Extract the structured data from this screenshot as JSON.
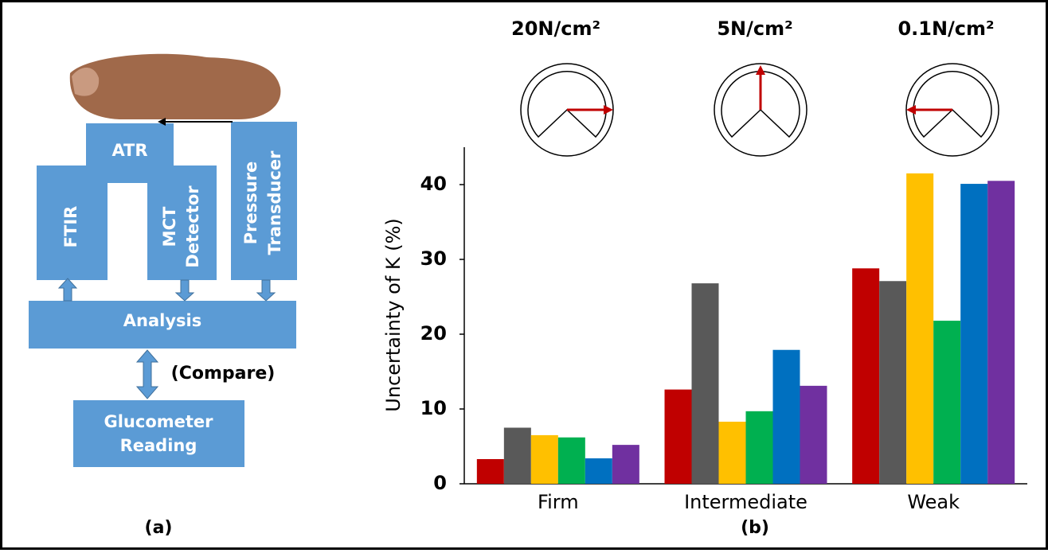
{
  "panels": {
    "a": "(a)",
    "b": "(b)"
  },
  "diagram": {
    "atr": "ATR",
    "ftir": "FTIR",
    "mct": [
      "MCT",
      "Detector"
    ],
    "pressure": [
      "Pressure",
      "Transducer"
    ],
    "analysis": "Analysis",
    "compare": "(Compare)",
    "glucometer": [
      "Glucometer",
      "Reading"
    ]
  },
  "gauges": [
    "20N/cm²",
    "5N/cm²",
    "0.1N/cm²"
  ],
  "chart_data": {
    "type": "bar",
    "y_label": "Uncertainty of  K (%)",
    "categories": [
      "Firm",
      "Intermediate",
      "Weak"
    ],
    "series": [
      {
        "color": "#c00000",
        "values": [
          3.3,
          12.6,
          28.8
        ]
      },
      {
        "color": "#595959",
        "values": [
          7.5,
          26.8,
          27.1
        ]
      },
      {
        "color": "#ffc000",
        "values": [
          6.5,
          8.3,
          41.5
        ]
      },
      {
        "color": "#00b050",
        "values": [
          6.2,
          9.7,
          21.8
        ]
      },
      {
        "color": "#0070c0",
        "values": [
          3.4,
          17.9,
          40.1
        ]
      },
      {
        "color": "#7030a0",
        "values": [
          5.2,
          13.1,
          40.5
        ]
      }
    ],
    "ylim": [
      0,
      45
    ],
    "yticks": [
      0,
      10,
      20,
      30,
      40
    ]
  }
}
